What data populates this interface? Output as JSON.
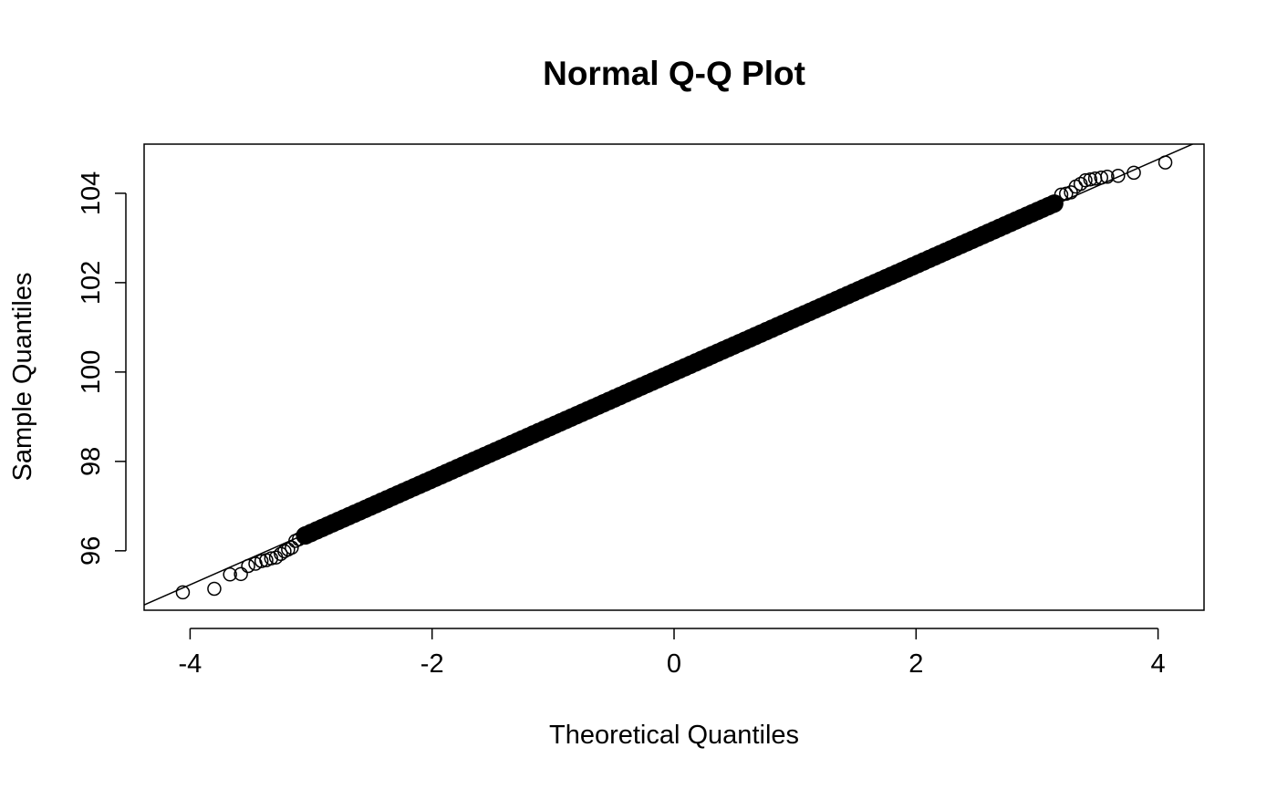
{
  "chart_data": {
    "type": "scatter",
    "title": "Normal Q-Q Plot",
    "xlabel": "Theoretical Quantiles",
    "ylabel": "Sample Quantiles",
    "xlim": [
      -4.38,
      4.38
    ],
    "ylim": [
      94.67,
      105.1
    ],
    "xticks": [
      -4,
      -2,
      0,
      2,
      4
    ],
    "xtick_labels": [
      "-4",
      "-2",
      "0",
      "2",
      "4"
    ],
    "yticks": [
      96,
      98,
      100,
      102,
      104
    ],
    "ytick_labels": [
      "96",
      "98",
      "100",
      "102",
      "104"
    ],
    "grid": false,
    "legend": "none",
    "reference_line": {
      "intercept": 100,
      "slope": 1.19
    },
    "central_band": {
      "x_from": -3.05,
      "x_to": 3.15,
      "intercept": 100,
      "slope": 1.2
    },
    "tail_points": [
      {
        "x": -4.06,
        "y": 95.07
      },
      {
        "x": -3.8,
        "y": 95.15
      },
      {
        "x": -3.67,
        "y": 95.47
      },
      {
        "x": -3.58,
        "y": 95.48
      },
      {
        "x": -3.52,
        "y": 95.66
      },
      {
        "x": -3.46,
        "y": 95.71
      },
      {
        "x": -3.41,
        "y": 95.77
      },
      {
        "x": -3.37,
        "y": 95.79
      },
      {
        "x": -3.33,
        "y": 95.83
      },
      {
        "x": -3.29,
        "y": 95.85
      },
      {
        "x": -3.25,
        "y": 95.93
      },
      {
        "x": -3.22,
        "y": 95.99
      },
      {
        "x": -3.19,
        "y": 96.03
      },
      {
        "x": -3.16,
        "y": 96.07
      },
      {
        "x": -3.13,
        "y": 96.22
      },
      {
        "x": -3.1,
        "y": 96.26
      },
      {
        "x": 3.2,
        "y": 103.97
      },
      {
        "x": 3.24,
        "y": 103.99
      },
      {
        "x": 3.28,
        "y": 104.02
      },
      {
        "x": 3.32,
        "y": 104.15
      },
      {
        "x": 3.36,
        "y": 104.21
      },
      {
        "x": 3.4,
        "y": 104.29
      },
      {
        "x": 3.44,
        "y": 104.31
      },
      {
        "x": 3.48,
        "y": 104.33
      },
      {
        "x": 3.53,
        "y": 104.35
      },
      {
        "x": 3.58,
        "y": 104.37
      },
      {
        "x": 3.67,
        "y": 104.39
      },
      {
        "x": 3.8,
        "y": 104.46
      },
      {
        "x": 4.06,
        "y": 104.69
      }
    ]
  }
}
